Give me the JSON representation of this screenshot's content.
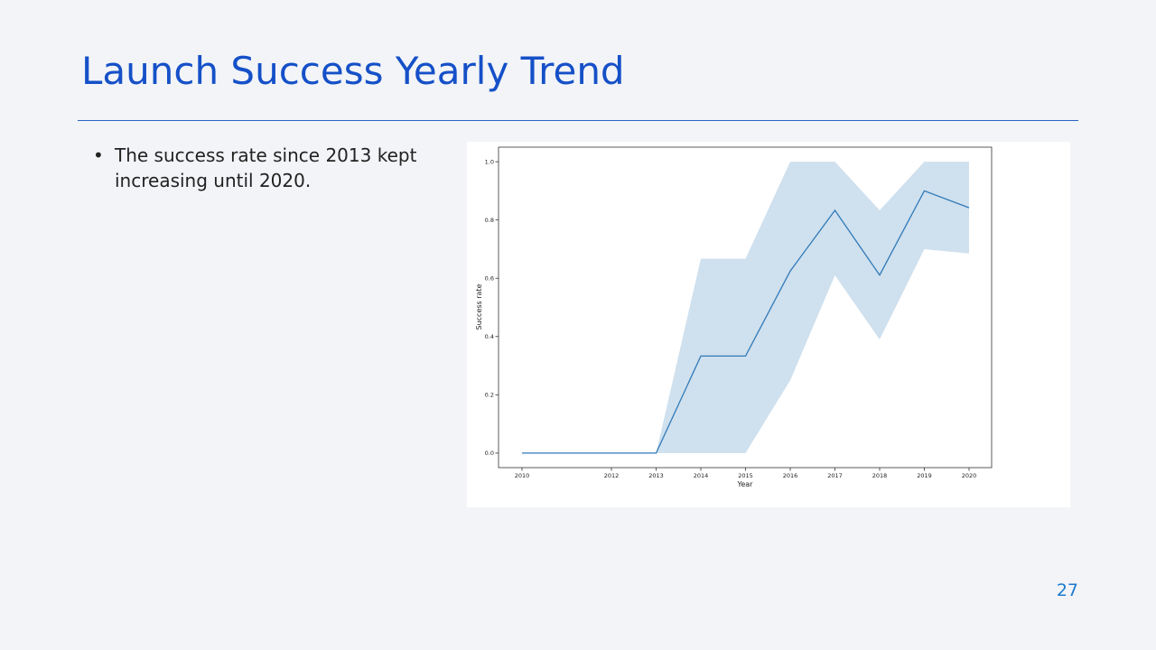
{
  "slide": {
    "title": "Launch Success Yearly Trend",
    "bullets": [
      "The success rate since 2013 kept increasing until 2020."
    ],
    "page_number": "27"
  },
  "colors": {
    "title": "#1550c8",
    "rule": "#2a62c2",
    "page_number": "#1c7ad0",
    "line": "#2f7ab8",
    "band": "#cfe0ee"
  },
  "chart_data": {
    "type": "line",
    "x": [
      2010,
      2012,
      2013,
      2014,
      2015,
      2016,
      2017,
      2018,
      2019,
      2020
    ],
    "x_ticks": [
      "2010",
      "2012",
      "2013",
      "2014",
      "2015",
      "2016",
      "2017",
      "2018",
      "2019",
      "2020"
    ],
    "series": [
      {
        "values": [
          0.0,
          0.0,
          0.0,
          0.333,
          0.333,
          0.625,
          0.833,
          0.611,
          0.9,
          0.842
        ],
        "ci_lower": [
          0.0,
          0.0,
          0.0,
          0.0,
          0.0,
          0.25,
          0.61,
          0.39,
          0.7,
          0.685
        ],
        "ci_upper": [
          0.0,
          0.0,
          0.0,
          0.667,
          0.667,
          1.0,
          1.0,
          0.833,
          1.0,
          1.0
        ]
      }
    ],
    "xlabel": "Year",
    "ylabel": "Success rate",
    "y_ticks": [
      "0.0",
      "0.2",
      "0.4",
      "0.6",
      "0.8",
      "1.0"
    ],
    "ylim": [
      -0.05,
      1.05
    ],
    "grid": false,
    "legend": "none"
  }
}
